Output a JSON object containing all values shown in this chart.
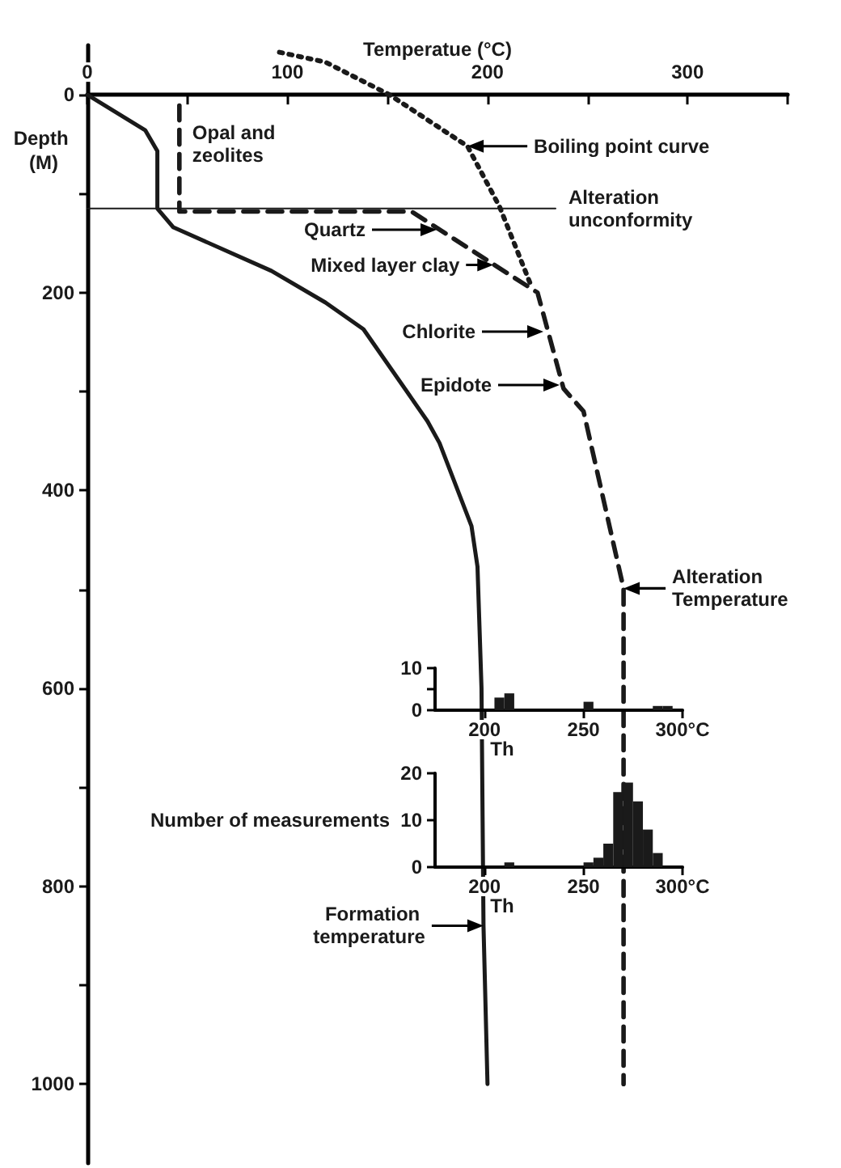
{
  "chart_data": [
    {
      "type": "line",
      "xlabel": "Temperatue (°C)",
      "ylabel": "Depth (M)",
      "xlim": [
        0,
        350
      ],
      "xticks": [
        0,
        {
          "value": 50,
          "label": null
        },
        100,
        {
          "value": 150,
          "label": null
        },
        200,
        {
          "value": 250,
          "label": null
        },
        300,
        {
          "value": 350,
          "label": null
        }
      ],
      "ylim": [
        1080,
        -50
      ],
      "yticks": [
        0,
        {
          "value": 100,
          "label": null
        },
        200,
        {
          "value": 300,
          "label": null
        },
        400,
        {
          "value": 500,
          "label": null
        },
        600,
        {
          "value": 700,
          "label": null
        },
        800,
        {
          "value": 900,
          "label": null
        },
        1000
      ],
      "grid": false,
      "legend": false,
      "marker": "none",
      "series": [
        {
          "name": "Formation temperature",
          "color": "#1a1a1a",
          "line_style": "solid",
          "x": [
            0,
            29,
            35,
            35,
            43,
            92,
            119,
            138,
            170,
            176,
            192,
            195,
            197,
            198,
            200
          ],
          "values": [
            0,
            36,
            57,
            115,
            134,
            178,
            210,
            237,
            330,
            352,
            436,
            477,
            600,
            840,
            1000
          ]
        },
        {
          "name": "Alteration Temperature",
          "color": "#1a1a1a",
          "line_style": "dashed",
          "x": [
            46,
            46,
            162,
            225,
            238,
            248,
            268,
            268
          ],
          "values": [
            11,
            118,
            118,
            200,
            297,
            320,
            499,
            1000
          ]
        },
        {
          "name": "Boiling point curve",
          "color": "#1a1a1a",
          "line_style": "dotted",
          "x": [
            96,
            119,
            151,
            190,
            206,
            222
          ],
          "values": [
            -43,
            -33,
            0,
            52,
            113,
            194
          ]
        },
        {
          "name": "Alteration unconformity",
          "color": "#1a1a1a",
          "line_style": "solid",
          "x": [
            0,
            234
          ],
          "values": [
            115,
            115
          ]
        }
      ],
      "annotations": [
        {
          "text": "Opal and zeolites",
          "x": 46,
          "y": 50
        },
        "Quartz",
        {
          "text": "Mixed layer clay",
          "x": 203,
          "y": 172
        },
        "Chlorite",
        "Epidote"
      ]
    },
    {
      "type": "histogram",
      "xlabel": "Th",
      "xlim": [
        175,
        300
      ],
      "xticks": [
        200,
        250,
        {
          "value": 300,
          "label": "300°C"
        }
      ],
      "ylim": [
        0,
        10
      ],
      "yticks": [
        0,
        {
          "value": 5,
          "label": null
        },
        10
      ],
      "color": "#1a1a1a",
      "bins": [
        175,
        180,
        185,
        190,
        195,
        200,
        205,
        210,
        215,
        220,
        225,
        230,
        235,
        240,
        245,
        250,
        255,
        260,
        265,
        270,
        275,
        280,
        285,
        290,
        295,
        300
      ],
      "values": [
        0,
        0,
        0,
        0,
        0,
        0,
        3,
        4,
        0,
        0,
        0,
        0,
        0,
        0,
        0,
        2,
        0,
        0,
        0,
        0,
        0,
        0,
        1,
        1,
        0
      ]
    },
    {
      "type": "histogram",
      "xlabel": "Th",
      "ylabel": "Number of measurements",
      "xlim": [
        175,
        300
      ],
      "xticks": [
        200,
        250,
        {
          "value": 300,
          "label": "300°C"
        }
      ],
      "ylim": [
        0,
        20
      ],
      "yticks": [
        0,
        10,
        20
      ],
      "color": "#1a1a1a",
      "bins": [
        175,
        180,
        185,
        190,
        195,
        200,
        205,
        210,
        215,
        220,
        225,
        230,
        235,
        240,
        245,
        250,
        255,
        260,
        265,
        270,
        275,
        280,
        285,
        290,
        295,
        300
      ],
      "values": [
        0,
        0,
        0,
        0,
        0,
        0,
        0,
        1,
        0,
        0,
        0,
        0,
        0,
        0,
        0,
        1,
        2,
        5,
        16,
        18,
        14,
        8,
        3,
        0,
        0
      ]
    }
  ]
}
